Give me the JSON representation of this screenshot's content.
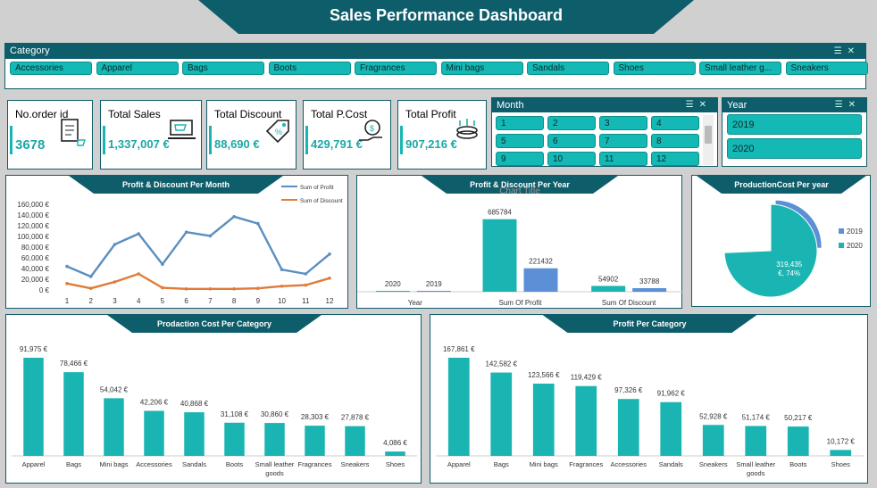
{
  "title": "Sales Performance Dashboard",
  "category_slicer": {
    "label": "Category",
    "items": [
      "Accessories",
      "Apparel",
      "Bags",
      "Boots",
      "Fragrances",
      "Mini bags",
      "Sandals",
      "Shoes",
      "Small leather g...",
      "Sneakers"
    ]
  },
  "kpis": [
    {
      "label": "No.order id",
      "value": "3678",
      "icon": "clipboard-cart-icon"
    },
    {
      "label": "Total Sales",
      "value": "1,337,007 €",
      "icon": "sale-laptop-icon"
    },
    {
      "label": "Total Discount",
      "value": "88,690 €",
      "icon": "price-tag-icon"
    },
    {
      "label": "Total P.Cost",
      "value": "429,791 €",
      "icon": "coin-hand-icon"
    },
    {
      "label": "Total Profit",
      "value": "907,216 €",
      "icon": "coins-growth-icon"
    }
  ],
  "month_slicer": {
    "label": "Month",
    "items": [
      "1",
      "2",
      "3",
      "4",
      "5",
      "6",
      "7",
      "8",
      "9",
      "10",
      "11",
      "12"
    ]
  },
  "year_slicer": {
    "label": "Year",
    "items": [
      "2019",
      "2020"
    ]
  },
  "colors": {
    "teal": "#1ab5b3",
    "dark": "#0e5d6b",
    "blue": "#5b8fd6",
    "orange": "#e07b39",
    "line_blue": "#5a8fc0"
  },
  "chart_data": [
    {
      "type": "line",
      "title": "Profit & Discount Per Month",
      "x": [
        1,
        2,
        3,
        4,
        5,
        6,
        7,
        8,
        9,
        10,
        11,
        12
      ],
      "series": [
        {
          "name": "Sum of Profit",
          "values": [
            44000,
            25000,
            85000,
            105000,
            48000,
            108000,
            101000,
            137000,
            124000,
            38000,
            30000,
            67000
          ]
        },
        {
          "name": "Sum of Discount",
          "values": [
            12000,
            3000,
            15000,
            30000,
            4000,
            2000,
            2000,
            2000,
            3000,
            7000,
            9000,
            22000
          ]
        }
      ],
      "yticks": [
        "0 €",
        "20,000 €",
        "40,000 €",
        "60,000 €",
        "80,000 €",
        "100,000 €",
        "120,000 €",
        "140,000 €",
        "160,000 €"
      ],
      "ylim": [
        0,
        160000
      ],
      "legend": "top-right"
    },
    {
      "type": "bar",
      "title": "Profit & Discount Per Year",
      "overlay_text": "Chart Title",
      "categories": [
        "Year",
        "Sum Of Profit",
        "Sum Of Discount"
      ],
      "series": [
        {
          "name": "2020",
          "values": [
            2020,
            685784,
            54902
          ]
        },
        {
          "name": "2019",
          "values": [
            2019,
            221432,
            33788
          ]
        }
      ],
      "ylim": [
        0,
        700000
      ]
    },
    {
      "type": "pie",
      "title": "ProductionCost Per year",
      "slices": [
        {
          "name": "2019",
          "value": 110356,
          "label_value": "110,356",
          "label_rest": "€, 26%"
        },
        {
          "name": "2020",
          "value": 319435,
          "label_value": "319,435",
          "label_rest": "€, 74%"
        }
      ],
      "legend": "right"
    },
    {
      "type": "bar",
      "title": "Prodaction Cost Per Category",
      "categories": [
        "Apparel",
        "Bags",
        "Mini bags",
        "Accessories",
        "Sandals",
        "Boots",
        "Small leather goods",
        "Fragrances",
        "Sneakers",
        "Shoes"
      ],
      "values": [
        91975,
        78466,
        54042,
        42206,
        40868,
        31108,
        30860,
        28303,
        27878,
        4086
      ],
      "labels": [
        "91,975 €",
        "78,466 €",
        "54,042 €",
        "42,206 €",
        "40,868 €",
        "31,108 €",
        "30,860 €",
        "28,303 €",
        "27,878 €",
        "4,086 €"
      ]
    },
    {
      "type": "bar",
      "title": "Profit Per Category",
      "categories": [
        "Apparel",
        "Bags",
        "Mini bags",
        "Fragrances",
        "Accessories",
        "Sandals",
        "Sneakers",
        "Small leather goods",
        "Boots",
        "Shoes"
      ],
      "values": [
        167861,
        142582,
        123566,
        119429,
        97326,
        91962,
        52928,
        51174,
        50217,
        10172
      ],
      "labels": [
        "167,861 €",
        "142,582 €",
        "123,566 €",
        "119,429 €",
        "97,326 €",
        "91,962 €",
        "52,928 €",
        "51,174 €",
        "50,217 €",
        "10,172 €"
      ]
    }
  ]
}
